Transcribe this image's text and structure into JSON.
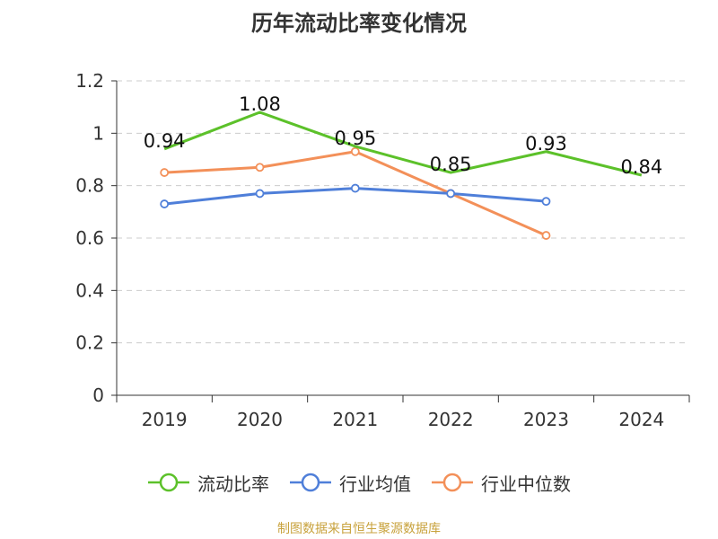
{
  "title": "历年流动比率变化情况",
  "source": "制图数据来自恒生聚源数据库",
  "chart_data": {
    "type": "line",
    "title": "历年流动比率变化情况",
    "categories": [
      "2019",
      "2020",
      "2021",
      "2022",
      "2023",
      "2024"
    ],
    "ylim": [
      0,
      1.2
    ],
    "yticks": [
      "0",
      "0.2",
      "0.4",
      "0.6",
      "0.8",
      "1",
      "1.2"
    ],
    "grid": true,
    "legend_position": "bottom",
    "series": [
      {
        "name": "流动比率",
        "color": "#5cc12a",
        "values": [
          0.94,
          1.08,
          0.95,
          0.85,
          0.93,
          0.84
        ],
        "labels": [
          "0.94",
          "1.08",
          "0.95",
          "0.85",
          "0.93",
          "0.84"
        ],
        "show_markers": false
      },
      {
        "name": "行业均值",
        "color": "#4f7fd9",
        "values": [
          0.73,
          0.77,
          0.79,
          0.77,
          0.74,
          null
        ],
        "show_markers": true
      },
      {
        "name": "行业中位数",
        "color": "#f39059",
        "values": [
          0.85,
          0.87,
          0.93,
          0.77,
          0.61,
          null
        ],
        "show_markers": true
      }
    ]
  }
}
